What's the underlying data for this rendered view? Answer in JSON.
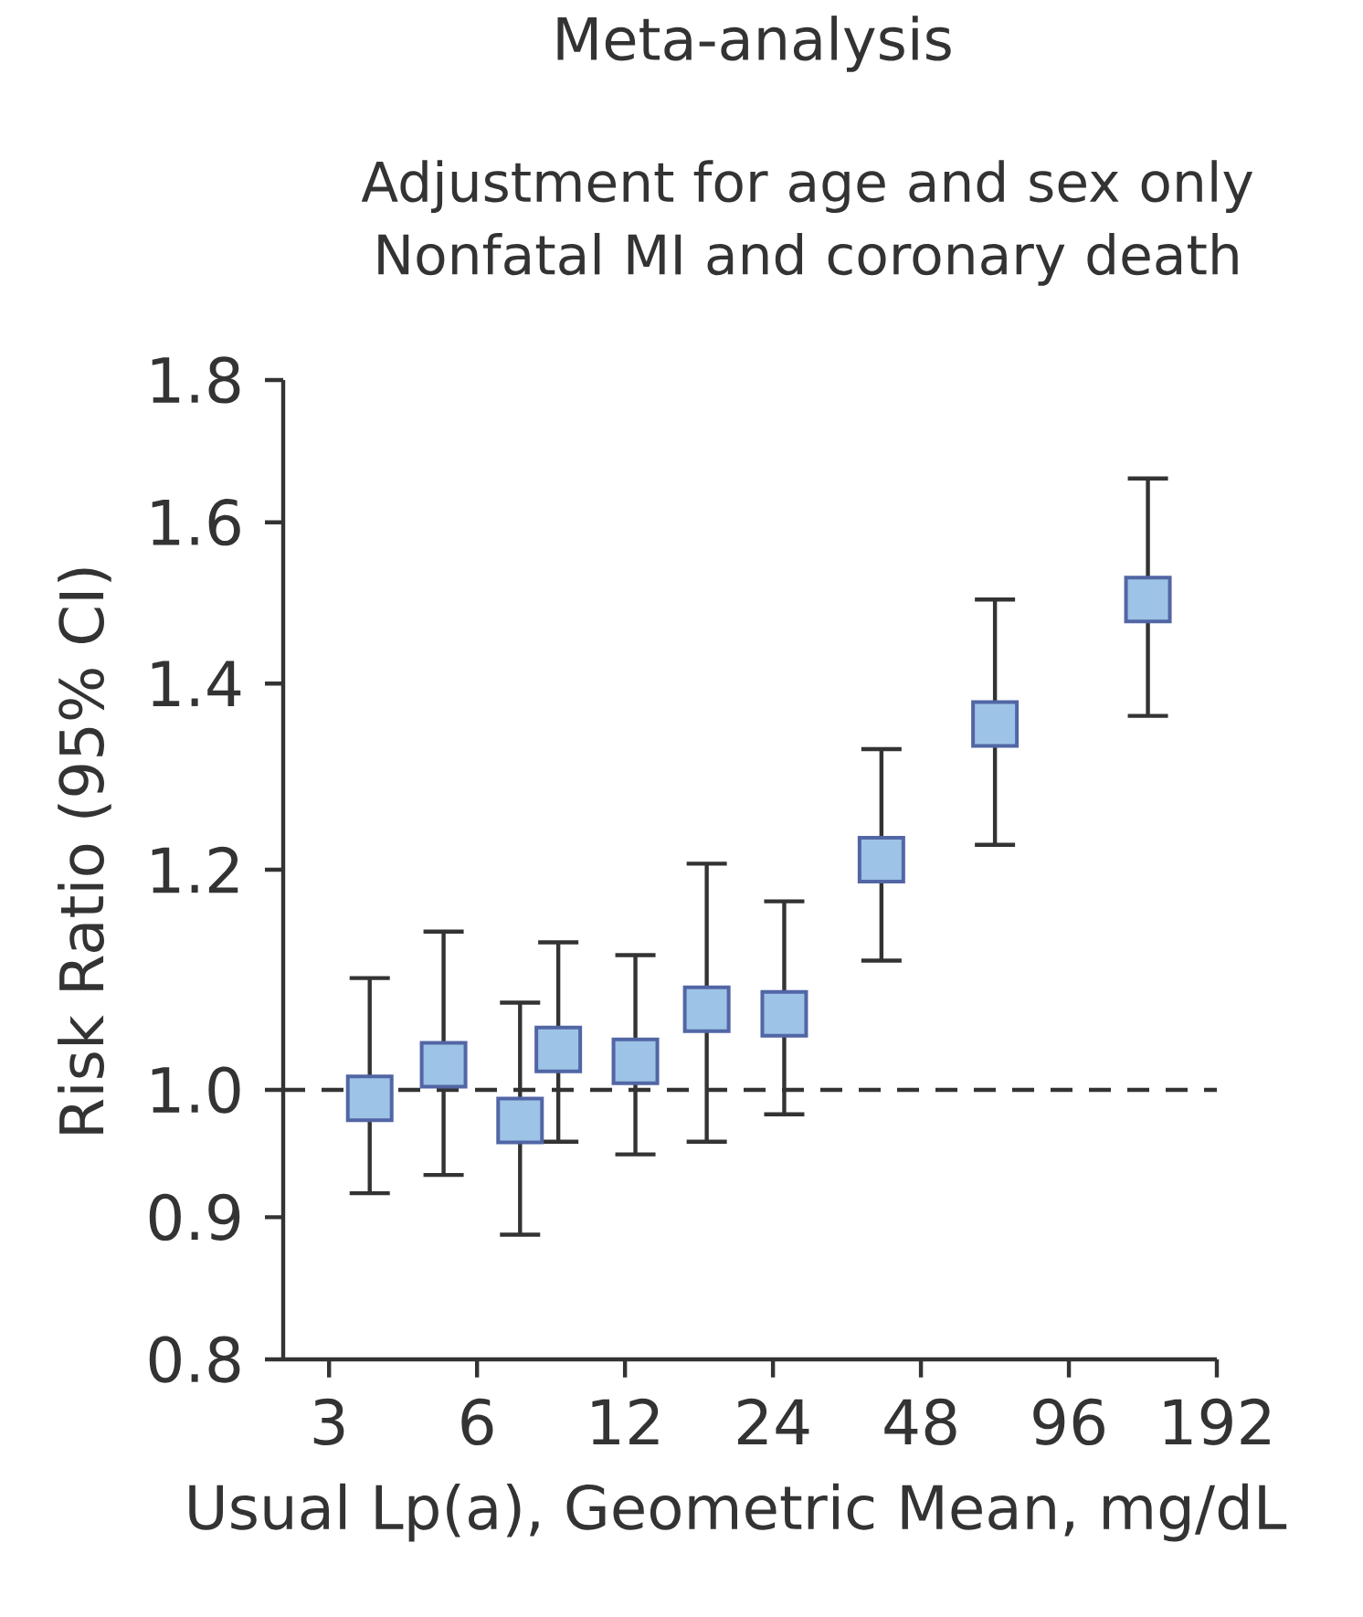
{
  "chart_data": {
    "type": "scatter",
    "title": "Meta-analysis",
    "subtitle": "Adjustment for age and sex only Nonfatal MI and coronary death",
    "xlabel": "Usual Lp(a), Geometric Mean, mg/dL",
    "ylabel": "Risk Ratio (95% CI)",
    "log": "xy",
    "xlim": [
      2.42,
      192
    ],
    "ylim": [
      0.8,
      1.8
    ],
    "xticks": [
      3,
      6,
      12,
      24,
      48,
      96,
      192
    ],
    "yticks": [
      0.8,
      0.9,
      {
        "value": 1.0,
        "label": "1.0"
      },
      1.2,
      1.4,
      1.6,
      1.8
    ],
    "x": [
      3.63,
      5.13,
      7.34,
      8.78,
      12.6,
      17.6,
      25.3,
      39.9,
      67.9,
      139
    ],
    "series": [
      {
        "color": "#9dc3e6",
        "values": [
          0.993,
          1.021,
          0.975,
          1.034,
          1.024,
          1.069,
          1.065,
          1.21,
          1.354,
          1.501
        ],
        "errors": [
          [
            0.918,
            1.097
          ],
          [
            0.932,
            1.14
          ],
          [
            0.887,
            1.075
          ],
          [
            0.958,
            1.13
          ],
          [
            0.948,
            1.118
          ],
          [
            0.958,
            1.206
          ],
          [
            0.98,
            1.169
          ],
          [
            1.113,
            1.326
          ],
          [
            1.225,
            1.501
          ],
          [
            1.363,
            1.659
          ]
        ]
      }
    ],
    "marker": "square",
    "ref_lines": [
      {
        "axis": "y",
        "value": 1.0,
        "color": "#333333",
        "line_style": "dashed"
      }
    ]
  }
}
